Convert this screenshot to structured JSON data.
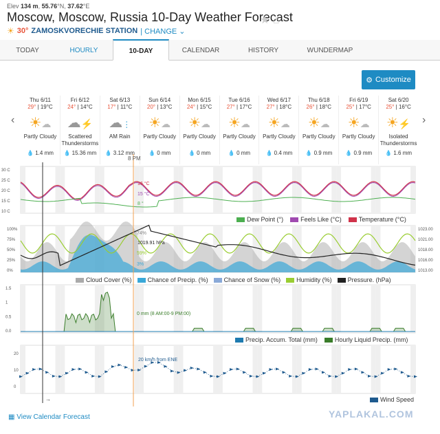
{
  "header": {
    "elev_label": "Elev",
    "elev_value": "134 m",
    "lat": "55.76",
    "lat_suffix": "°N,",
    "lon": "37.62",
    "lon_suffix": "°E",
    "title": "Moscow, Moscow, Russia 10-Day Weather Forecast",
    "current_temp": "30°",
    "station": "ZAMOSKVORECHIE STATION",
    "change_label": "| CHANGE"
  },
  "tabs": [
    {
      "label": "TODAY"
    },
    {
      "label": "HOURLY"
    },
    {
      "label": "10-DAY"
    },
    {
      "label": "CALENDAR"
    },
    {
      "label": "HISTORY"
    },
    {
      "label": "WUNDERMAP"
    }
  ],
  "customize_label": "Customize",
  "days": [
    {
      "name": "Thu 6/11",
      "hi": "29°",
      "lo": "19°C",
      "cond": "Partly Cloudy",
      "precip": "1.4 mm",
      "icon": "partly-cloudy-icon"
    },
    {
      "name": "Fri 6/12",
      "hi": "24°",
      "lo": "14°C",
      "cond": "Scattered Thunderstorms",
      "precip": "15.36 mm",
      "icon": "thunderstorm-icon"
    },
    {
      "name": "Sat 6/13",
      "hi": "17°",
      "lo": "11°C",
      "cond": "AM Rain",
      "precip": "3.12 mm",
      "icon": "rain-icon"
    },
    {
      "name": "Sun 6/14",
      "hi": "20°",
      "lo": "13°C",
      "cond": "Partly Cloudy",
      "precip": "0 mm",
      "icon": "partly-cloudy-icon"
    },
    {
      "name": "Mon 6/15",
      "hi": "24°",
      "lo": "15°C",
      "cond": "Partly Cloudy",
      "precip": "0 mm",
      "icon": "partly-cloudy-icon"
    },
    {
      "name": "Tue 6/16",
      "hi": "27°",
      "lo": "17°C",
      "cond": "Partly Cloudy",
      "precip": "0 mm",
      "icon": "partly-cloudy-icon"
    },
    {
      "name": "Wed 6/17",
      "hi": "27°",
      "lo": "18°C",
      "cond": "Partly Cloudy",
      "precip": "0.4 mm",
      "icon": "partly-cloudy-icon"
    },
    {
      "name": "Thu 6/18",
      "hi": "26°",
      "lo": "18°C",
      "cond": "Partly Cloudy",
      "precip": "0.9 mm",
      "icon": "partly-cloudy-icon"
    },
    {
      "name": "Fri 6/19",
      "hi": "25°",
      "lo": "17°C",
      "cond": "Partly Cloudy",
      "precip": "0.9 mm",
      "icon": "partly-cloudy-icon"
    },
    {
      "name": "Sat 6/20",
      "hi": "25°",
      "lo": "16°C",
      "cond": "Isolated Thunderstorms",
      "precip": "1.6 mm",
      "icon": "thunderstorm-icon"
    }
  ],
  "cursor_label": "8 PM",
  "temp_chart": {
    "yticks": [
      "30 C",
      "25 C",
      "20 C",
      "15 C",
      "10 C"
    ],
    "readout_temp": "16 °C",
    "readout_feels": "15 °C",
    "readout_dew": "8 °",
    "legend": [
      "Dew Point (°)",
      "Feels Like (°C)",
      "Temperature (°C)"
    ],
    "colors": {
      "dew": "#4caf50",
      "feels": "#a04ab0",
      "temp": "#d0334a"
    }
  },
  "cloud_chart": {
    "yticks_left": [
      "100%",
      "75%",
      "50%",
      "25%",
      "0%"
    ],
    "yticks_right": [
      "1023.00",
      "1021.00",
      "1018.00",
      "1016.00",
      "1013.00"
    ],
    "readout_cloud": "74%",
    "readout_pressure": "1019.91 hPa",
    "readout_humidity": "59%",
    "readout_precip": "3%",
    "legend": [
      "Cloud Cover (%)",
      "Chance of Precip. (%)",
      "Chance of Snow (%)",
      "Humidity (%)",
      "Pressure. (hPa)"
    ],
    "colors": {
      "cloud": "#aaaaaa",
      "precip": "#3aa8d8",
      "snow": "#8aa9d8",
      "humidity": "#9acd32",
      "pressure": "#222222"
    }
  },
  "precip_chart": {
    "yticks": [
      "1.5",
      "1",
      "0.5",
      "0.0"
    ],
    "readout": "0 mm (8 AM:00-9 PM:00)",
    "legend": [
      "Precip. Accum. Total (mm)",
      "Hourly Liquid Precip. (mm)"
    ],
    "colors": {
      "accum": "#1e7bb0",
      "hourly": "#3a7d2a"
    }
  },
  "wind_chart": {
    "yticks": [
      "20",
      "10",
      "0"
    ],
    "readout": "20 km/h from ENE",
    "legend": [
      "Wind Speed"
    ],
    "colors": {
      "wind": "#1e5a8e"
    }
  },
  "footer": {
    "calendar_link": "View Calendar Forecast",
    "watermark": "YAPLAKAL.COM"
  }
}
